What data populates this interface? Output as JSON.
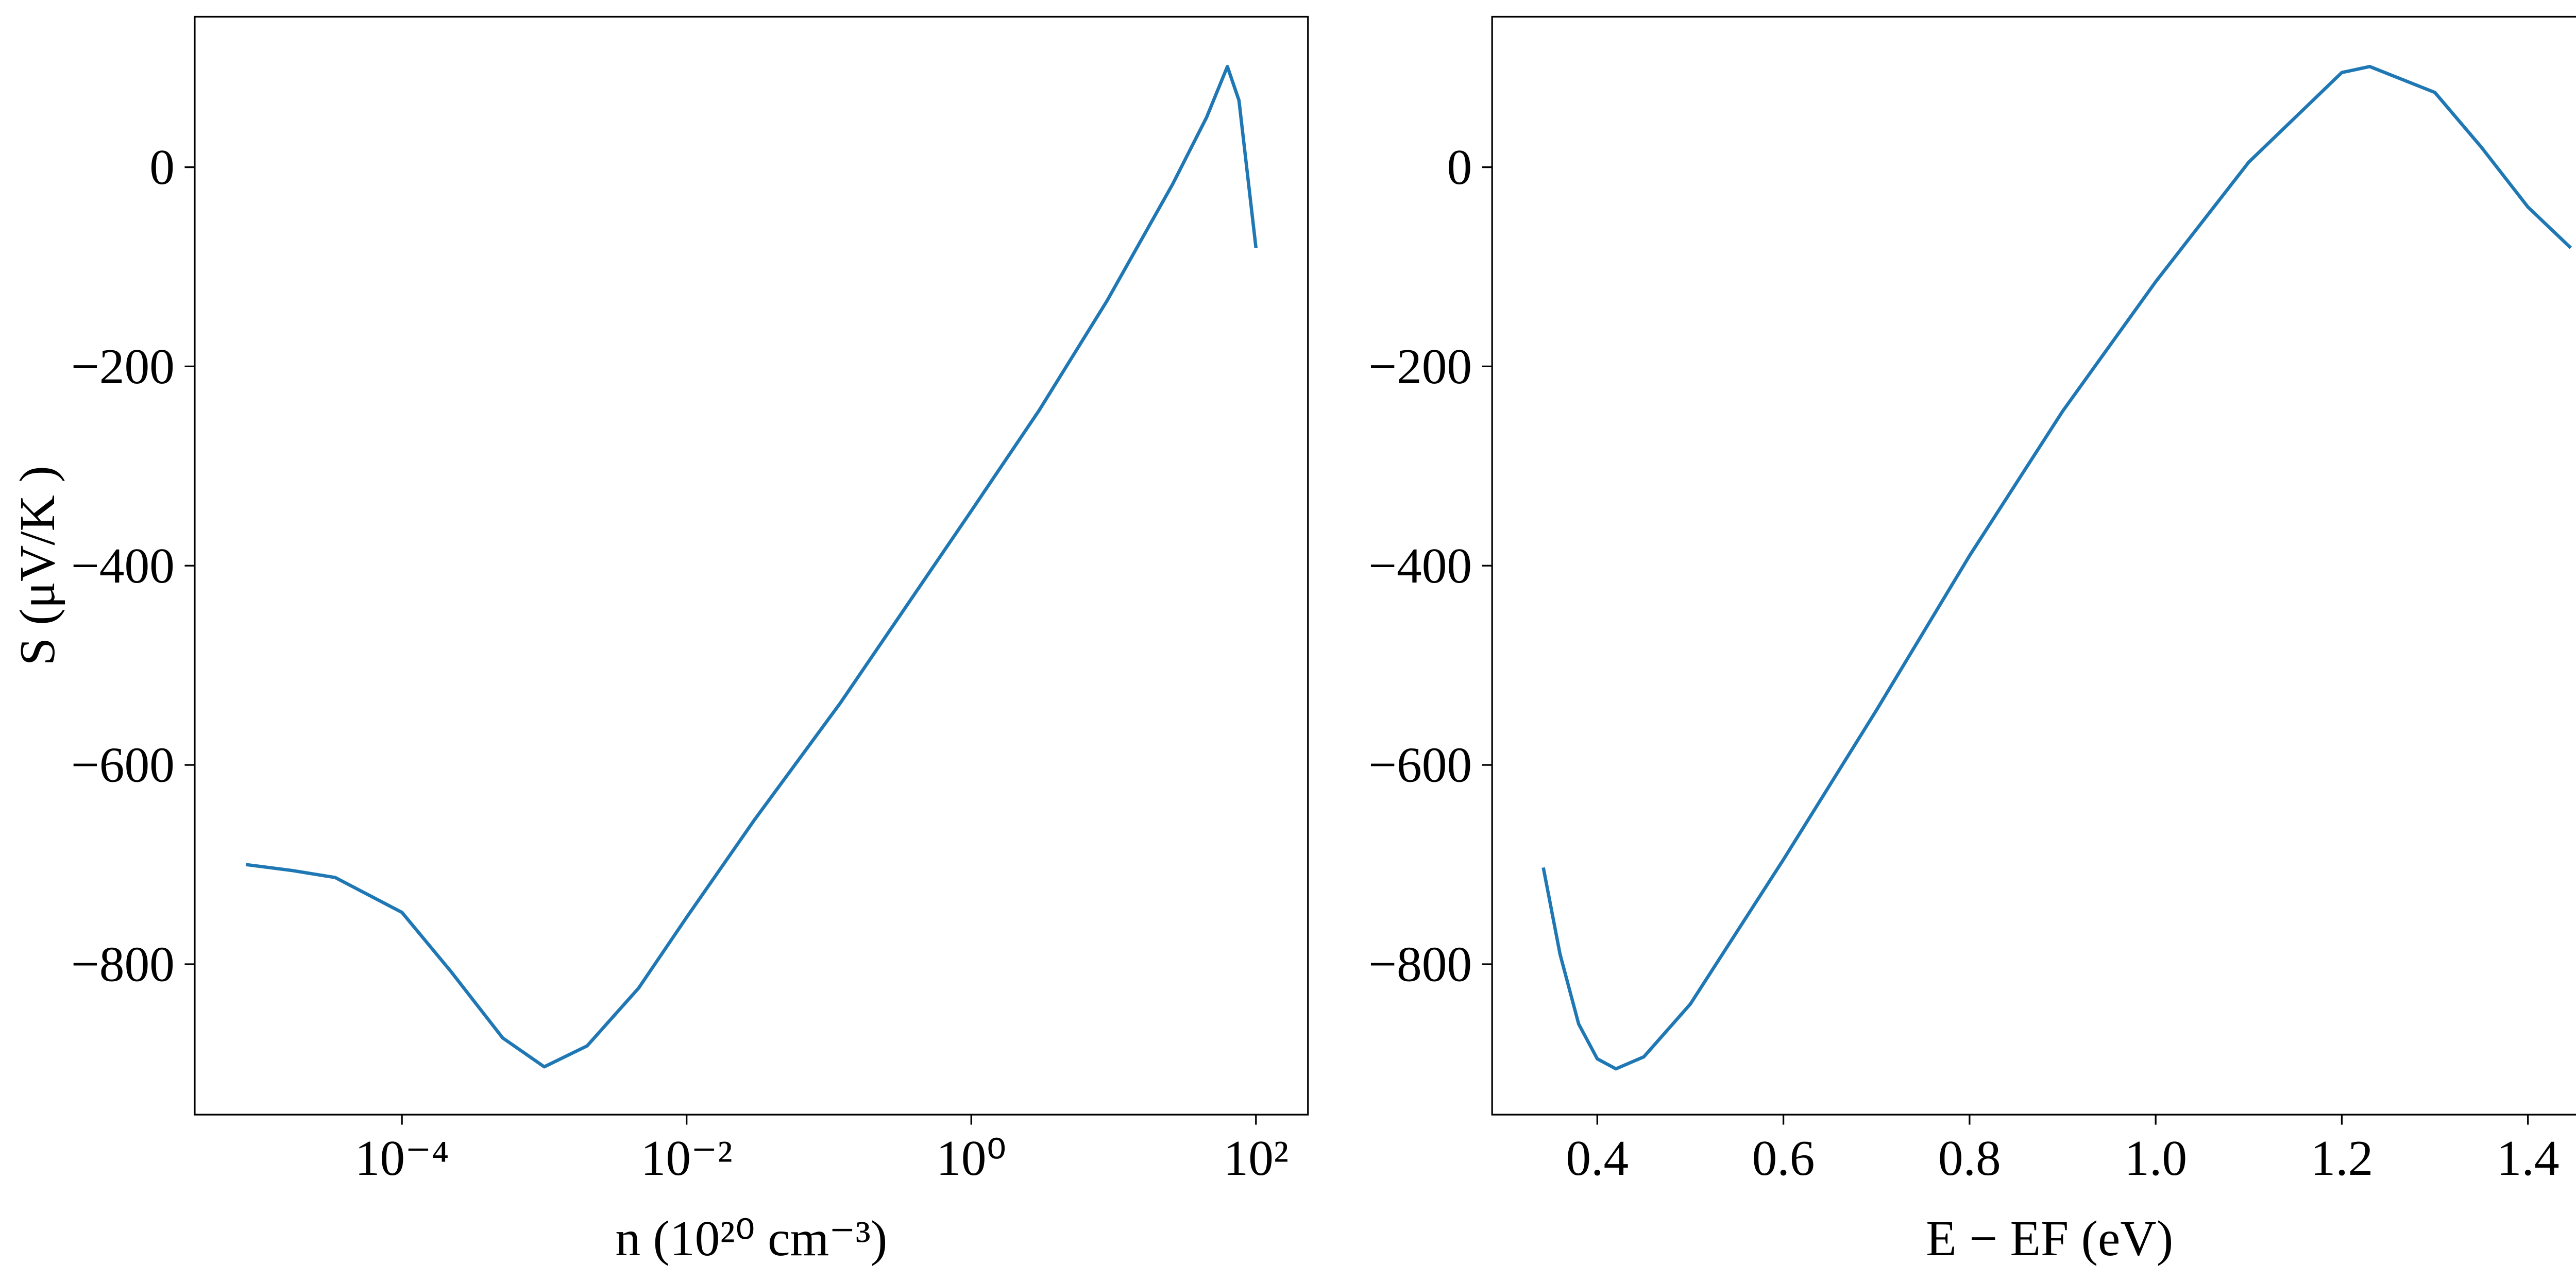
{
  "chart_data": [
    {
      "type": "line",
      "xscale": "log",
      "xlabel": "n (10²⁰ cm⁻³)",
      "ylabel": "S (μV/K )",
      "x": [
        8e-06,
        1.7e-05,
        3.4e-05,
        0.0001,
        0.00022,
        0.00051,
        0.001,
        0.002,
        0.0046,
        0.01,
        0.03,
        0.12,
        1,
        3,
        9,
        26,
        45,
        63,
        76,
        100
      ],
      "series": [
        {
          "color": "#1f77b4",
          "values": [
            -700,
            -706,
            -713,
            -748,
            -807,
            -874,
            -903,
            -882,
            -824,
            -753,
            -655,
            -538,
            -345,
            -244,
            -134,
            -17,
            50,
            101,
            67,
            -81
          ]
        }
      ],
      "xlim": [
        3.5e-06,
        232
      ],
      "ylim": [
        -951,
        151
      ],
      "xticks": [
        {
          "value": 0.0001,
          "label": "10⁻⁴"
        },
        {
          "value": 0.01,
          "label": "10⁻²"
        },
        {
          "value": 1,
          "label": "10⁰"
        },
        {
          "value": 100,
          "label": "10²"
        }
      ],
      "yticks": [
        {
          "value": -800,
          "label": "−800"
        },
        {
          "value": -600,
          "label": "−600"
        },
        {
          "value": -400,
          "label": "−400"
        },
        {
          "value": -200,
          "label": "−200"
        },
        0
      ]
    },
    {
      "type": "line",
      "xscale": "linear",
      "xlabel": "E − EF (eV)",
      "x": [
        0.342,
        0.36,
        0.38,
        0.4,
        0.42,
        0.45,
        0.5,
        0.6,
        0.7,
        0.8,
        0.9,
        1.0,
        1.1,
        1.2,
        1.23,
        1.3,
        1.35,
        1.4,
        1.446
      ],
      "series": [
        {
          "color": "#1f77b4",
          "values": [
            -703,
            -790,
            -860,
            -895,
            -905,
            -893,
            -840,
            -695,
            -545,
            -390,
            -245,
            -115,
            5,
            95,
            101,
            75,
            20,
            -40,
            -81
          ]
        }
      ],
      "xlim": [
        0.287,
        1.485
      ],
      "ylim": [
        -951,
        151
      ],
      "xticks": [
        0.4,
        0.6,
        0.8,
        {
          "value": 1,
          "label": "1.0"
        },
        1.2,
        1.4
      ],
      "yticks": [
        {
          "value": -800,
          "label": "−800"
        },
        {
          "value": -600,
          "label": "−600"
        },
        {
          "value": -400,
          "label": "−400"
        },
        {
          "value": -200,
          "label": "−200"
        },
        0
      ]
    }
  ]
}
